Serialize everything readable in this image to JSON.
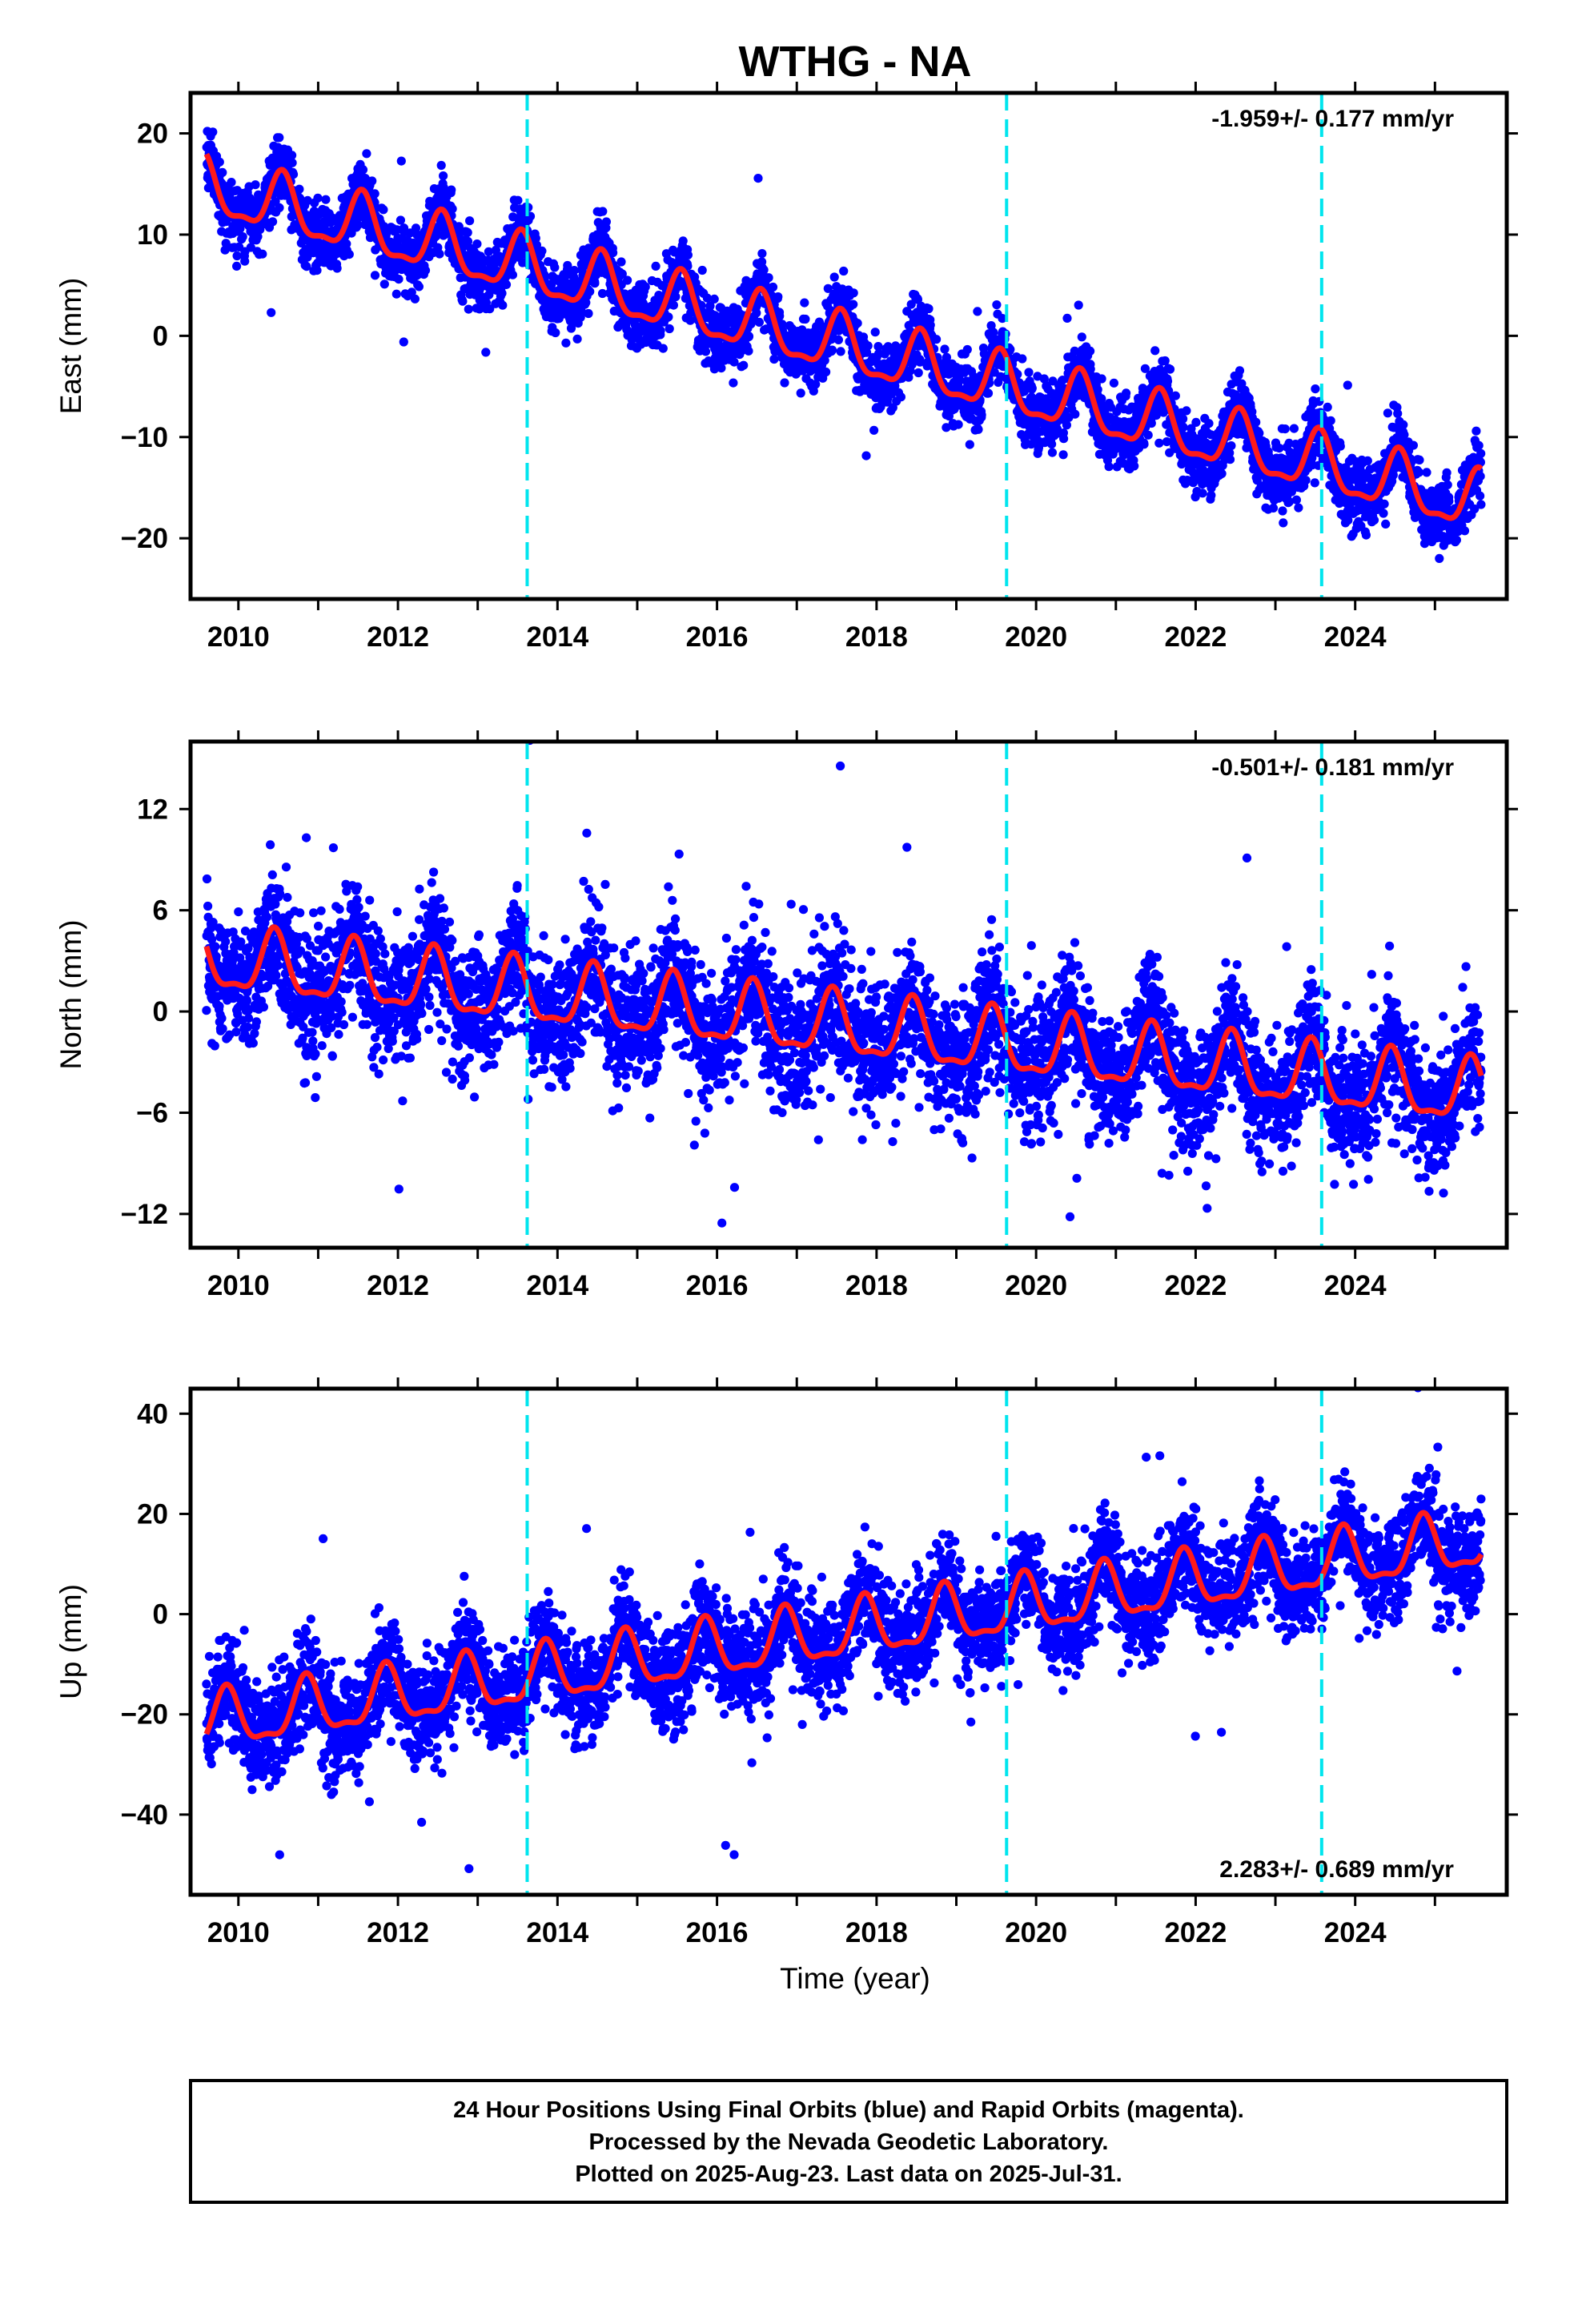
{
  "title": "WTHG - NA",
  "x_axis_label": "Time (year)",
  "footer": {
    "line1": "24 Hour Positions Using Final Orbits (blue) and Rapid Orbits (magenta).",
    "line2": "Processed by the Nevada Geodetic Laboratory.",
    "line3": "Plotted on 2025-Aug-23. Last data on 2025-Jul-31."
  },
  "colors": {
    "points": "#0000ff",
    "model": "#ff1a1a",
    "events": "#00e5ee",
    "frame": "#000000"
  },
  "chart_data": [
    {
      "type": "scatter",
      "component": "east",
      "ylabel": "East (mm)",
      "rate_label": "-1.959+/- 0.177 mm/yr",
      "xlim": [
        2009.4,
        2025.9
      ],
      "ylim": [
        -26,
        24
      ],
      "x_ticks": [
        "2010",
        "2012",
        "2014",
        "2016",
        "2018",
        "2020",
        "2022",
        "2024"
      ],
      "y_ticks": [
        "20",
        "10",
        "0",
        "-10",
        "-20"
      ],
      "trend": {
        "intercept_at_2009_6": 14.5,
        "rate_mm_per_yr": -1.959,
        "annual_amplitude": 2.8,
        "annual_peak_year_fraction": 0.55
      },
      "scatter_sigma": 1.6,
      "event_lines": [
        2013.62,
        2019.63,
        2023.58
      ],
      "data_span": [
        2009.6,
        2025.58
      ]
    },
    {
      "type": "scatter",
      "component": "north",
      "ylabel": "North (mm)",
      "rate_label": "-0.501+/- 0.181 mm/yr",
      "xlim": [
        2009.4,
        2025.9
      ],
      "ylim": [
        -14,
        16
      ],
      "x_ticks": [
        "2010",
        "2012",
        "2014",
        "2016",
        "2018",
        "2020",
        "2022",
        "2024"
      ],
      "y_ticks": [
        "12",
        "6",
        "0",
        "-6",
        "-12"
      ],
      "trend": {
        "intercept_at_2009_6": 3.0,
        "rate_mm_per_yr": -0.501,
        "annual_amplitude": 1.8,
        "annual_peak_year_fraction": 0.45
      },
      "scatter_sigma": 1.9,
      "event_lines": [
        2013.62,
        2019.63,
        2023.58
      ],
      "data_span": [
        2009.6,
        2025.58
      ]
    },
    {
      "type": "scatter",
      "component": "up",
      "ylabel": "Up (mm)",
      "rate_label": "2.283+/- 0.689 mm/yr",
      "xlim": [
        2009.4,
        2025.9
      ],
      "ylim": [
        -56,
        45
      ],
      "x_ticks": [
        "2010",
        "2012",
        "2014",
        "2016",
        "2018",
        "2020",
        "2022",
        "2024"
      ],
      "y_ticks": [
        "40",
        "20",
        "0",
        "-20",
        "-40"
      ],
      "trend": {
        "intercept_at_2009_6": -22.0,
        "rate_mm_per_yr": 2.283,
        "annual_amplitude": 5.5,
        "annual_peak_year_fraction": 0.85
      },
      "scatter_sigma": 5.0,
      "event_lines": [
        2013.62,
        2019.63,
        2023.58
      ],
      "data_span": [
        2009.6,
        2025.58
      ]
    }
  ]
}
